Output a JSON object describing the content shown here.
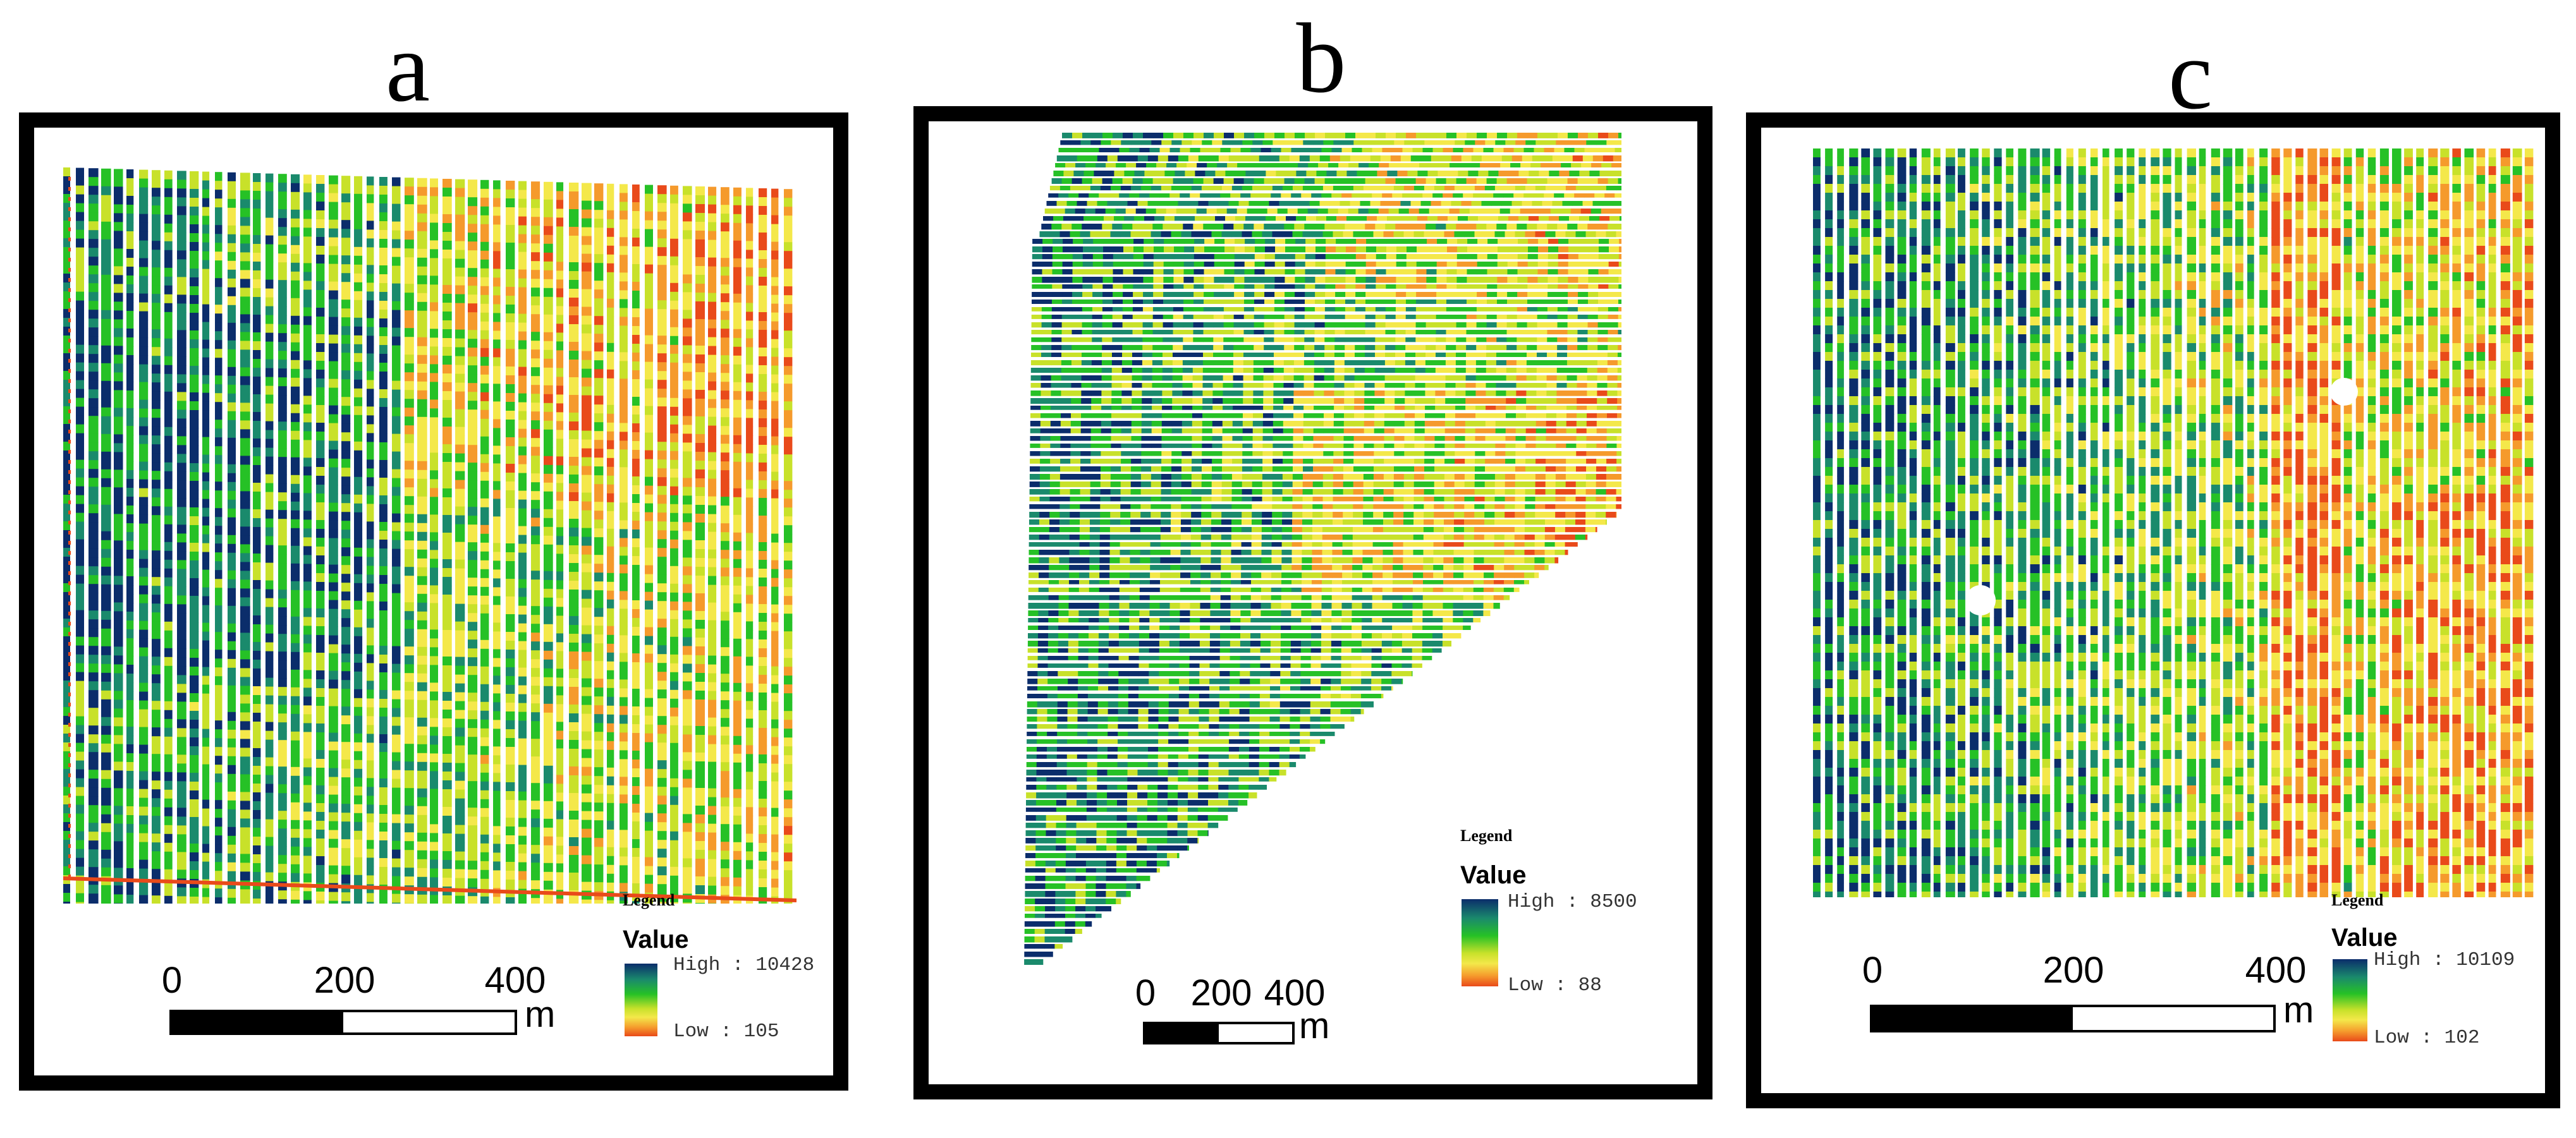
{
  "figure": {
    "panels": [
      {
        "id": "a",
        "letter": "a",
        "legend": {
          "title": "Legend",
          "field": "Value",
          "high_label": "High : 10428",
          "low_label": "Low : 105",
          "high_value": 10428,
          "low_value": 105
        },
        "scale_bar": {
          "ticks": [
            "0",
            "200",
            "400"
          ],
          "unit": "m"
        },
        "strip_orientation": "vertical"
      },
      {
        "id": "b",
        "letter": "b",
        "legend": {
          "title": "Legend",
          "field": "Value",
          "high_label": "High : 8500",
          "low_label": "Low : 88",
          "high_value": 8500,
          "low_value": 88
        },
        "scale_bar": {
          "ticks": [
            "0",
            "200",
            "400"
          ],
          "unit": "m"
        },
        "strip_orientation": "horizontal"
      },
      {
        "id": "c",
        "letter": "c",
        "legend": {
          "title": "Legend",
          "field": "Value",
          "high_label": "High : 10109",
          "low_label": "Low : 102",
          "high_value": 10109,
          "low_value": 102
        },
        "scale_bar": {
          "ticks": [
            "0",
            "200",
            "400"
          ],
          "unit": "m"
        },
        "strip_orientation": "vertical"
      }
    ],
    "color_ramp": [
      "#0b2d6b",
      "#1a8a6c",
      "#26c126",
      "#c8e12a",
      "#f4e84a",
      "#f59a2c",
      "#e94a1a"
    ]
  }
}
